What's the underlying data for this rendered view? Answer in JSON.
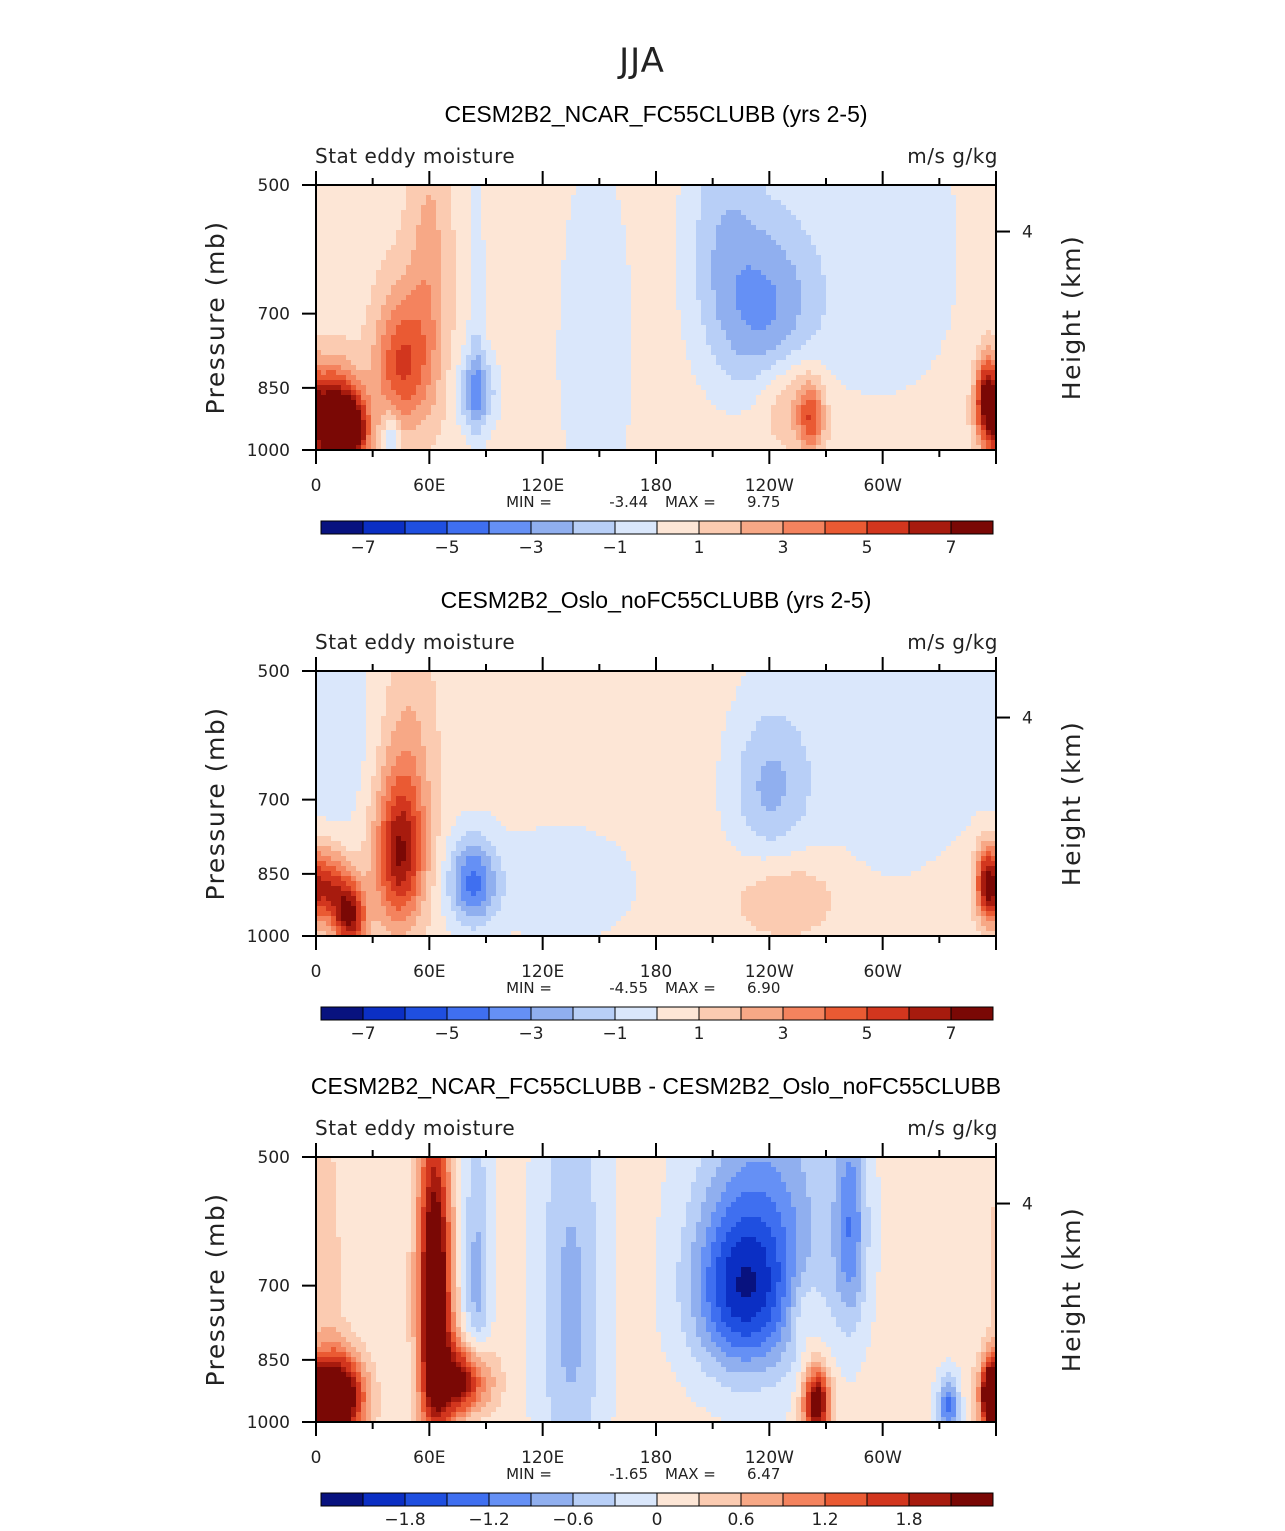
{
  "supertitle": "JJA",
  "palette": [
    "#08127f",
    "#0b2fc4",
    "#1f4fe0",
    "#3f6ff0",
    "#6590f5",
    "#90afef",
    "#b8cff7",
    "#dae7fb",
    "#fde6d6",
    "#fbcbb1",
    "#f7a886",
    "#f4835e",
    "#ea5a33",
    "#d2361e",
    "#a71b0e",
    "#7a0805"
  ],
  "colors": {
    "axis": "#000000",
    "text": "#222222"
  },
  "chart_data": [
    {
      "type": "heatmap",
      "title": "CESM2B2_NCAR_FC55CLUBB (yrs 2-5)",
      "left_label": "Stat eddy moisture",
      "right_label": "m/s g/kg",
      "ylabel": "Pressure (mb)",
      "y2label": "Height (km)",
      "y_ticks": [
        "500",
        "700",
        "850",
        "1000"
      ],
      "y2_ticks": [
        "4"
      ],
      "x_ticks": [
        "0",
        "60E",
        "120E",
        "180",
        "120W",
        "60W"
      ],
      "min_label": "MIN =",
      "min_value": "-3.44",
      "max_label": "MAX =",
      "max_value": "9.75",
      "colorbar_labels": [
        "-7",
        "-5",
        "-3",
        "-1",
        "1",
        "3",
        "5",
        "7"
      ],
      "background_level": 0.5,
      "features": [
        {
          "lon": 8,
          "p": 930,
          "lonw": 9,
          "pw": 80,
          "v": 9.7
        },
        {
          "lon": 20,
          "p": 950,
          "lonw": 6,
          "pw": 60,
          "v": 6
        },
        {
          "lon": 45,
          "p": 800,
          "lonw": 10,
          "pw": 100,
          "v": 4.5
        },
        {
          "lon": 60,
          "p": 650,
          "lonw": 8,
          "pw": 180,
          "v": 2
        },
        {
          "lon": 85,
          "p": 860,
          "lonw": 7,
          "pw": 60,
          "v": -3.4
        },
        {
          "lon": 40,
          "p": 960,
          "lonw": 3,
          "pw": 40,
          "v": -2
        },
        {
          "lon": 85,
          "p": 700,
          "lonw": 3,
          "pw": 250,
          "v": -1.2
        },
        {
          "lon": 240,
          "p": 700,
          "lonw": 18,
          "pw": 120,
          "v": -3.4
        },
        {
          "lon": 215,
          "p": 580,
          "lonw": 14,
          "pw": 150,
          "v": -2
        },
        {
          "lon": 300,
          "p": 600,
          "lonw": 30,
          "pw": 200,
          "v": -1.2
        },
        {
          "lon": 148,
          "p": 780,
          "lonw": 15,
          "pw": 250,
          "v": -1.2
        },
        {
          "lon": 262,
          "p": 920,
          "lonw": 5,
          "pw": 60,
          "v": 4
        },
        {
          "lon": 250,
          "p": 870,
          "lonw": 12,
          "pw": 80,
          "v": 2
        },
        {
          "lon": 355,
          "p": 870,
          "lonw": 4,
          "pw": 60,
          "v": 6
        }
      ]
    },
    {
      "type": "heatmap",
      "title": "CESM2B2_Oslo_noFC55CLUBB (yrs 2-5)",
      "left_label": "Stat eddy moisture",
      "right_label": "m/s g/kg",
      "ylabel": "Pressure (mb)",
      "y2label": "Height (km)",
      "y_ticks": [
        "500",
        "700",
        "850",
        "1000"
      ],
      "y2_ticks": [
        "4"
      ],
      "x_ticks": [
        "0",
        "60E",
        "120E",
        "180",
        "120W",
        "60W"
      ],
      "min_label": "MIN =",
      "min_value": "-4.55",
      "max_label": "MAX =",
      "max_value": "6.90",
      "colorbar_labels": [
        "-7",
        "-5",
        "-3",
        "-1",
        "1",
        "3",
        "5",
        "7"
      ],
      "background_level": 0.5,
      "features": [
        {
          "lon": 5,
          "p": 880,
          "lonw": 8,
          "pw": 60,
          "v": 5.5
        },
        {
          "lon": 18,
          "p": 950,
          "lonw": 6,
          "pw": 60,
          "v": 6.5
        },
        {
          "lon": 44,
          "p": 810,
          "lonw": 9,
          "pw": 110,
          "v": 6
        },
        {
          "lon": 50,
          "p": 650,
          "lonw": 10,
          "pw": 160,
          "v": 1.5
        },
        {
          "lon": 83,
          "p": 870,
          "lonw": 9,
          "pw": 70,
          "v": -4.5
        },
        {
          "lon": 10,
          "p": 580,
          "lonw": 15,
          "pw": 150,
          "v": -1.2
        },
        {
          "lon": 240,
          "p": 680,
          "lonw": 15,
          "pw": 100,
          "v": -2.5
        },
        {
          "lon": 300,
          "p": 600,
          "lonw": 35,
          "pw": 200,
          "v": -1.2
        },
        {
          "lon": 130,
          "p": 880,
          "lonw": 30,
          "pw": 100,
          "v": -1.2
        },
        {
          "lon": 250,
          "p": 900,
          "lonw": 20,
          "pw": 70,
          "v": 1.5
        },
        {
          "lon": 355,
          "p": 870,
          "lonw": 4,
          "pw": 60,
          "v": 5
        }
      ]
    },
    {
      "type": "heatmap",
      "title": "CESM2B2_NCAR_FC55CLUBB - CESM2B2_Oslo_noFC55CLUBB",
      "left_label": "Stat eddy moisture",
      "right_label": "m/s g/kg",
      "ylabel": "Pressure (mb)",
      "y2label": "Height (km)",
      "y_ticks": [
        "500",
        "700",
        "850",
        "1000"
      ],
      "y2_ticks": [
        "4"
      ],
      "x_ticks": [
        "0",
        "60E",
        "120E",
        "180",
        "120W",
        "60W"
      ],
      "min_label": "MIN =",
      "min_value": "-1.65",
      "max_label": "MAX =",
      "max_value": "6.47",
      "colorbar_labels": [
        "-1.8",
        "-1.2",
        "-0.6",
        "0",
        "0.6",
        "1.2",
        "1.8"
      ],
      "background_level": 0.1,
      "features": [
        {
          "lon": 10,
          "p": 940,
          "lonw": 10,
          "pw": 70,
          "v": 3.5
        },
        {
          "lon": 63,
          "p": 780,
          "lonw": 6,
          "pw": 200,
          "v": 2.5
        },
        {
          "lon": 78,
          "p": 900,
          "lonw": 10,
          "pw": 60,
          "v": 2.2
        },
        {
          "lon": 62,
          "p": 600,
          "lonw": 6,
          "pw": 150,
          "v": 0.8
        },
        {
          "lon": 85,
          "p": 700,
          "lonw": 5,
          "pw": 200,
          "v": -0.8
        },
        {
          "lon": 135,
          "p": 750,
          "lonw": 12,
          "pw": 300,
          "v": -0.8
        },
        {
          "lon": 225,
          "p": 710,
          "lonw": 18,
          "pw": 110,
          "v": -1.6
        },
        {
          "lon": 240,
          "p": 600,
          "lonw": 25,
          "pw": 180,
          "v": -0.9
        },
        {
          "lon": 283,
          "p": 600,
          "lonw": 6,
          "pw": 120,
          "v": -1.1
        },
        {
          "lon": 265,
          "p": 950,
          "lonw": 5,
          "pw": 60,
          "v": 2.5
        },
        {
          "lon": 258,
          "p": 750,
          "lonw": 6,
          "pw": 60,
          "v": 0.5
        },
        {
          "lon": 335,
          "p": 960,
          "lonw": 4,
          "pw": 50,
          "v": -1.4
        },
        {
          "lon": 357,
          "p": 930,
          "lonw": 3,
          "pw": 50,
          "v": 2.5
        },
        {
          "lon": 5,
          "p": 650,
          "lonw": 6,
          "pw": 150,
          "v": 0.4
        }
      ]
    }
  ]
}
